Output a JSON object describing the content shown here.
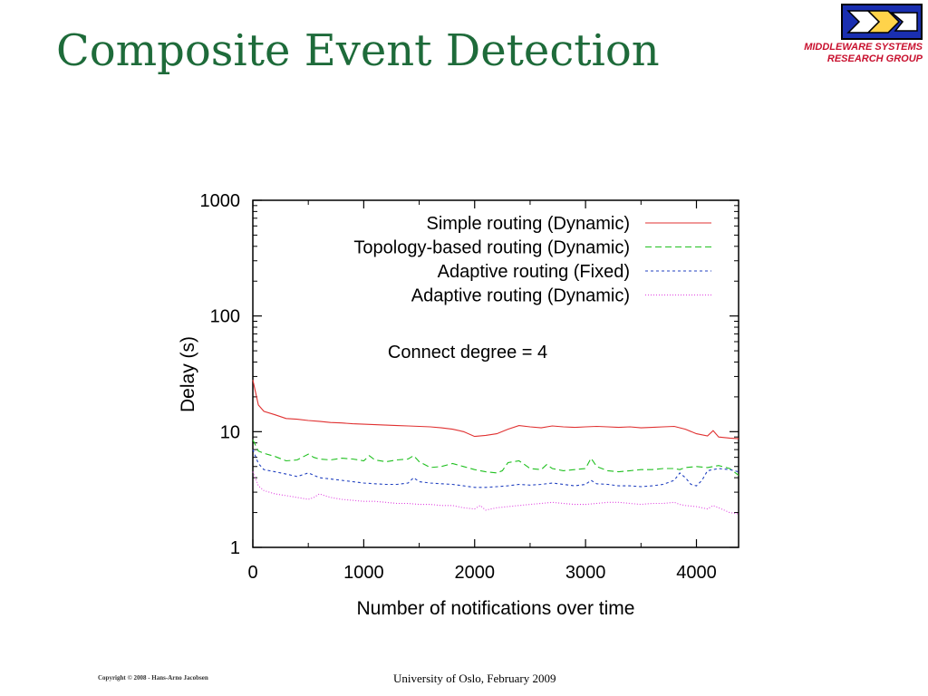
{
  "slide": {
    "title": "Composite Event Detection",
    "logo_text_line1": "MIDDLEWARE SYSTEMS",
    "logo_text_line2": "RESEARCH GROUP",
    "footer_copyright": "Copyright © 2008 - Hans-Arno Jacobsen",
    "footer_center": "University of Oslo, February 2009"
  },
  "chart_data": {
    "type": "line",
    "xlabel": "Number of notifications over time",
    "ylabel": "Delay (s)",
    "annotation": "Connect degree = 4",
    "xlim": [
      0,
      4380
    ],
    "ylim": [
      1,
      1000
    ],
    "yscale": "log",
    "xticks": [
      0,
      1000,
      2000,
      3000,
      4000
    ],
    "yticks": [
      1,
      10,
      100,
      1000
    ],
    "xtick_labels": [
      "0",
      "1000",
      "2000",
      "3000",
      "4000"
    ],
    "ytick_labels": [
      "1",
      "10",
      "100",
      "1000"
    ],
    "legend_position": "top-right",
    "series": [
      {
        "name": "Simple routing (Dynamic)",
        "color": "#e03030",
        "dash": "solid",
        "x": [
          0,
          50,
          100,
          200,
          300,
          400,
          500,
          600,
          700,
          800,
          900,
          1000,
          1100,
          1200,
          1300,
          1400,
          1500,
          1600,
          1700,
          1800,
          1900,
          2000,
          2100,
          2200,
          2300,
          2400,
          2500,
          2600,
          2700,
          2800,
          2900,
          3000,
          3100,
          3200,
          3300,
          3400,
          3500,
          3600,
          3700,
          3800,
          3900,
          4000,
          4100,
          4150,
          4200,
          4300,
          4380
        ],
        "y": [
          28,
          17,
          15,
          14,
          13,
          12.8,
          12.5,
          12.3,
          12,
          11.9,
          11.7,
          11.6,
          11.5,
          11.4,
          11.3,
          11.2,
          11.1,
          11,
          10.8,
          10.5,
          10,
          9.1,
          9.3,
          9.6,
          10.5,
          11.3,
          11,
          10.8,
          11.2,
          11,
          10.9,
          11,
          11.1,
          11,
          10.9,
          11,
          10.8,
          10.9,
          11,
          11.1,
          10.5,
          9.6,
          9.2,
          10.2,
          9,
          8.8,
          8.7
        ]
      },
      {
        "name": "Topology-based routing (Dynamic)",
        "color": "#20c020",
        "dash": "7,4",
        "x": [
          0,
          50,
          100,
          200,
          300,
          400,
          500,
          550,
          600,
          700,
          800,
          900,
          1000,
          1050,
          1100,
          1200,
          1300,
          1400,
          1450,
          1500,
          1600,
          1700,
          1800,
          1900,
          2000,
          2100,
          2200,
          2250,
          2300,
          2400,
          2450,
          2500,
          2600,
          2650,
          2700,
          2800,
          2900,
          3000,
          3050,
          3100,
          3200,
          3300,
          3400,
          3500,
          3600,
          3700,
          3800,
          3850,
          3900,
          4000,
          4100,
          4200,
          4300,
          4380
        ],
        "y": [
          8.5,
          6.8,
          6.5,
          6.1,
          5.6,
          5.7,
          6.4,
          6.0,
          5.8,
          5.7,
          5.9,
          5.8,
          5.6,
          6.2,
          5.7,
          5.5,
          5.7,
          5.8,
          6.2,
          5.5,
          4.9,
          5.0,
          5.3,
          5.0,
          4.7,
          4.5,
          4.4,
          4.6,
          5.4,
          5.6,
          5.2,
          4.8,
          4.7,
          5.2,
          4.8,
          4.6,
          4.7,
          4.8,
          5.9,
          5.0,
          4.6,
          4.5,
          4.6,
          4.7,
          4.7,
          4.8,
          4.8,
          4.7,
          4.9,
          5.0,
          4.9,
          5.1,
          4.8,
          4.2
        ]
      },
      {
        "name": "Adaptive routing (Fixed)",
        "color": "#2040c0",
        "dash": "3,3",
        "x": [
          0,
          50,
          100,
          200,
          300,
          400,
          500,
          550,
          600,
          700,
          800,
          900,
          1000,
          1100,
          1200,
          1300,
          1400,
          1450,
          1500,
          1600,
          1700,
          1800,
          1900,
          2000,
          2100,
          2200,
          2300,
          2400,
          2500,
          2600,
          2700,
          2800,
          2900,
          3000,
          3050,
          3100,
          3200,
          3300,
          3400,
          3500,
          3600,
          3700,
          3800,
          3850,
          3900,
          3950,
          4000,
          4050,
          4100,
          4200,
          4300,
          4380
        ],
        "y": [
          7,
          5.3,
          4.7,
          4.5,
          4.3,
          4.1,
          4.4,
          4.2,
          4.0,
          3.9,
          3.8,
          3.7,
          3.6,
          3.55,
          3.5,
          3.5,
          3.6,
          4.0,
          3.7,
          3.6,
          3.55,
          3.5,
          3.4,
          3.3,
          3.3,
          3.35,
          3.4,
          3.5,
          3.45,
          3.5,
          3.6,
          3.5,
          3.4,
          3.5,
          3.8,
          3.55,
          3.5,
          3.4,
          3.4,
          3.35,
          3.4,
          3.5,
          3.8,
          4.4,
          4.0,
          3.5,
          3.4,
          3.8,
          4.6,
          4.8,
          4.7,
          4.5
        ]
      },
      {
        "name": "Adaptive routing (Dynamic)",
        "color": "#e040e0",
        "dash": "1,2",
        "x": [
          0,
          50,
          100,
          200,
          300,
          400,
          500,
          550,
          600,
          700,
          800,
          900,
          1000,
          1100,
          1200,
          1300,
          1400,
          1500,
          1600,
          1700,
          1800,
          1900,
          2000,
          2050,
          2100,
          2200,
          2300,
          2400,
          2500,
          2600,
          2700,
          2800,
          2900,
          3000,
          3100,
          3200,
          3300,
          3400,
          3500,
          3600,
          3700,
          3800,
          3850,
          3900,
          4000,
          4100,
          4150,
          4200,
          4300,
          4380
        ],
        "y": [
          4.5,
          3.4,
          3.1,
          2.9,
          2.8,
          2.7,
          2.6,
          2.7,
          2.9,
          2.7,
          2.6,
          2.55,
          2.5,
          2.5,
          2.45,
          2.4,
          2.4,
          2.35,
          2.35,
          2.3,
          2.3,
          2.2,
          2.15,
          2.3,
          2.1,
          2.2,
          2.25,
          2.3,
          2.35,
          2.4,
          2.45,
          2.4,
          2.35,
          2.35,
          2.4,
          2.45,
          2.45,
          2.4,
          2.35,
          2.4,
          2.4,
          2.45,
          2.35,
          2.3,
          2.25,
          2.15,
          2.3,
          2.2,
          2.0,
          1.95
        ]
      }
    ]
  }
}
